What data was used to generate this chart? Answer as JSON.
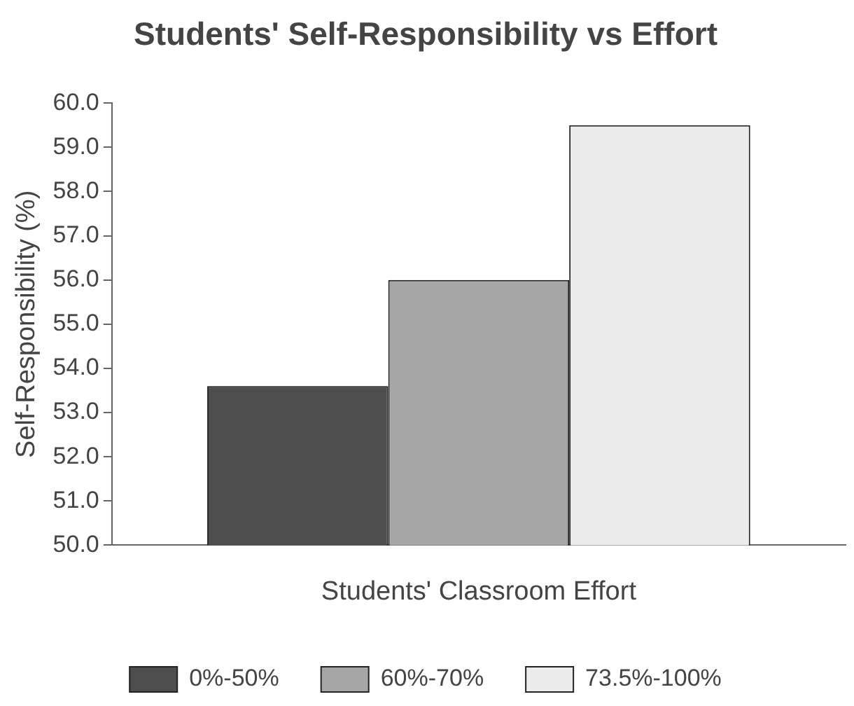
{
  "chart_data": {
    "type": "bar",
    "title": "Students' Self-Responsibility vs Effort",
    "xlabel": "Students' Classroom Effort",
    "ylabel": "Self-Responsibility (%)",
    "categories": [
      null
    ],
    "series": [
      {
        "name": "0%-50%",
        "color": "#4d4d4d",
        "values": [
          53.6
        ]
      },
      {
        "name": "60%-70%",
        "color": "#a6a6a6",
        "values": [
          56.0
        ]
      },
      {
        "name": "73.5%-100%",
        "color": "#ececec",
        "values": [
          59.5
        ]
      }
    ],
    "ylim": [
      50,
      60
    ],
    "yticks": [
      {
        "value": 50,
        "label": "50.0"
      },
      {
        "value": 51,
        "label": "51.0"
      },
      {
        "value": 52,
        "label": "52.0"
      },
      {
        "value": 53,
        "label": "53.0"
      },
      {
        "value": 54,
        "label": "54.0"
      },
      {
        "value": 55,
        "label": "55.0"
      },
      {
        "value": 56,
        "label": "56.0"
      },
      {
        "value": 57,
        "label": "57.0"
      },
      {
        "value": 58,
        "label": "58.0"
      },
      {
        "value": 59,
        "label": "59.0"
      },
      {
        "value": 60,
        "label": "60.0"
      }
    ],
    "grid": false,
    "legend": "bottom"
  }
}
